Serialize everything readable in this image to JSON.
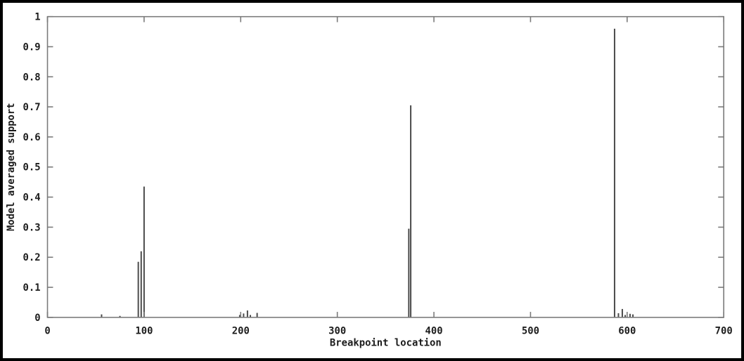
{
  "chart_data": {
    "type": "bar",
    "style": "impulses",
    "title": "",
    "xlabel": "Breakpoint location",
    "ylabel": "Model averaged support",
    "xlim": [
      0,
      700
    ],
    "ylim": [
      0,
      1
    ],
    "x_ticks": [
      0,
      100,
      200,
      300,
      400,
      500,
      600,
      700
    ],
    "y_ticks": [
      0,
      0.1,
      0.2,
      0.3,
      0.4,
      0.5,
      0.6,
      0.7,
      0.8,
      0.9,
      1
    ],
    "grid": false,
    "legend": "none",
    "points": [
      {
        "x": 56,
        "y": 0.01
      },
      {
        "x": 75,
        "y": 0.005
      },
      {
        "x": 94,
        "y": 0.185
      },
      {
        "x": 97,
        "y": 0.22
      },
      {
        "x": 100,
        "y": 0.435
      },
      {
        "x": 199,
        "y": 0.008
      },
      {
        "x": 203,
        "y": 0.013
      },
      {
        "x": 207,
        "y": 0.023
      },
      {
        "x": 210,
        "y": 0.008
      },
      {
        "x": 217,
        "y": 0.015
      },
      {
        "x": 374,
        "y": 0.295
      },
      {
        "x": 376,
        "y": 0.705
      },
      {
        "x": 587,
        "y": 0.96
      },
      {
        "x": 591,
        "y": 0.014
      },
      {
        "x": 595,
        "y": 0.028
      },
      {
        "x": 598,
        "y": 0.008
      },
      {
        "x": 603,
        "y": 0.012
      },
      {
        "x": 606,
        "y": 0.01
      }
    ],
    "colors": {
      "impulse": "#4a4a4a",
      "frame": "#7a7a7a",
      "text": "#1c1c1c",
      "outer_border": "#000000",
      "background": "#ffffff"
    }
  }
}
